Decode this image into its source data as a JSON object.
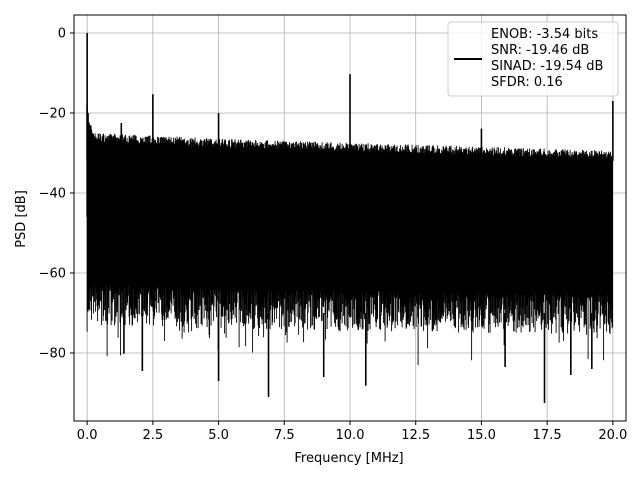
{
  "chart_data": {
    "type": "line",
    "title": "",
    "xlabel": "Frequency [MHz]",
    "ylabel": "PSD [dB]",
    "xlim": [
      -0.5,
      20.5
    ],
    "ylim": [
      -97,
      4.5
    ],
    "xticks": [
      0.0,
      2.5,
      5.0,
      7.5,
      10.0,
      12.5,
      15.0,
      17.5,
      20.0
    ],
    "xtick_labels": [
      "0.0",
      "2.5",
      "5.0",
      "7.5",
      "10.0",
      "12.5",
      "15.0",
      "17.5",
      "20.0"
    ],
    "yticks": [
      0,
      -20,
      -40,
      -60,
      -80
    ],
    "ytick_labels": [
      "0",
      "−20",
      "−40",
      "−60",
      "−80"
    ],
    "grid": true,
    "series_color": "#000000",
    "noise_band": {
      "upper": [
        [
          0.0,
          -22
        ],
        [
          0.3,
          -26
        ],
        [
          5,
          -27.5
        ],
        [
          10,
          -28.5
        ],
        [
          15,
          -29.5
        ],
        [
          20,
          -30.5
        ]
      ],
      "lower": [
        [
          0.0,
          -62
        ],
        [
          0.3,
          -63
        ],
        [
          5,
          -64
        ],
        [
          10,
          -64.5
        ],
        [
          15,
          -65
        ],
        [
          20,
          -65.5
        ]
      ]
    },
    "peaks": [
      {
        "x": 0.0,
        "y": 0.0
      },
      {
        "x": 2.5,
        "y": -15.3
      },
      {
        "x": 5.0,
        "y": -20.0
      },
      {
        "x": 10.0,
        "y": -10.3
      },
      {
        "x": 15.0,
        "y": -23.9
      },
      {
        "x": 20.0,
        "y": -17.0
      },
      {
        "x": 1.3,
        "y": -22.5
      }
    ],
    "dips": [
      {
        "x": 1.4,
        "y": -80.2
      },
      {
        "x": 2.1,
        "y": -84.5
      },
      {
        "x": 5.0,
        "y": -87.0
      },
      {
        "x": 6.9,
        "y": -91.0
      },
      {
        "x": 9.0,
        "y": -86.0
      },
      {
        "x": 10.6,
        "y": -88.2
      },
      {
        "x": 15.9,
        "y": -83.5
      },
      {
        "x": 17.4,
        "y": -92.5
      },
      {
        "x": 18.4,
        "y": -85.5
      },
      {
        "x": 19.2,
        "y": -84.0
      }
    ],
    "legend": {
      "position": "top-right",
      "lines": [
        "ENOB: -3.54 bits",
        "SNR: -19.46 dB",
        "SINAD: -19.54 dB",
        "SFDR: 0.16"
      ]
    }
  }
}
